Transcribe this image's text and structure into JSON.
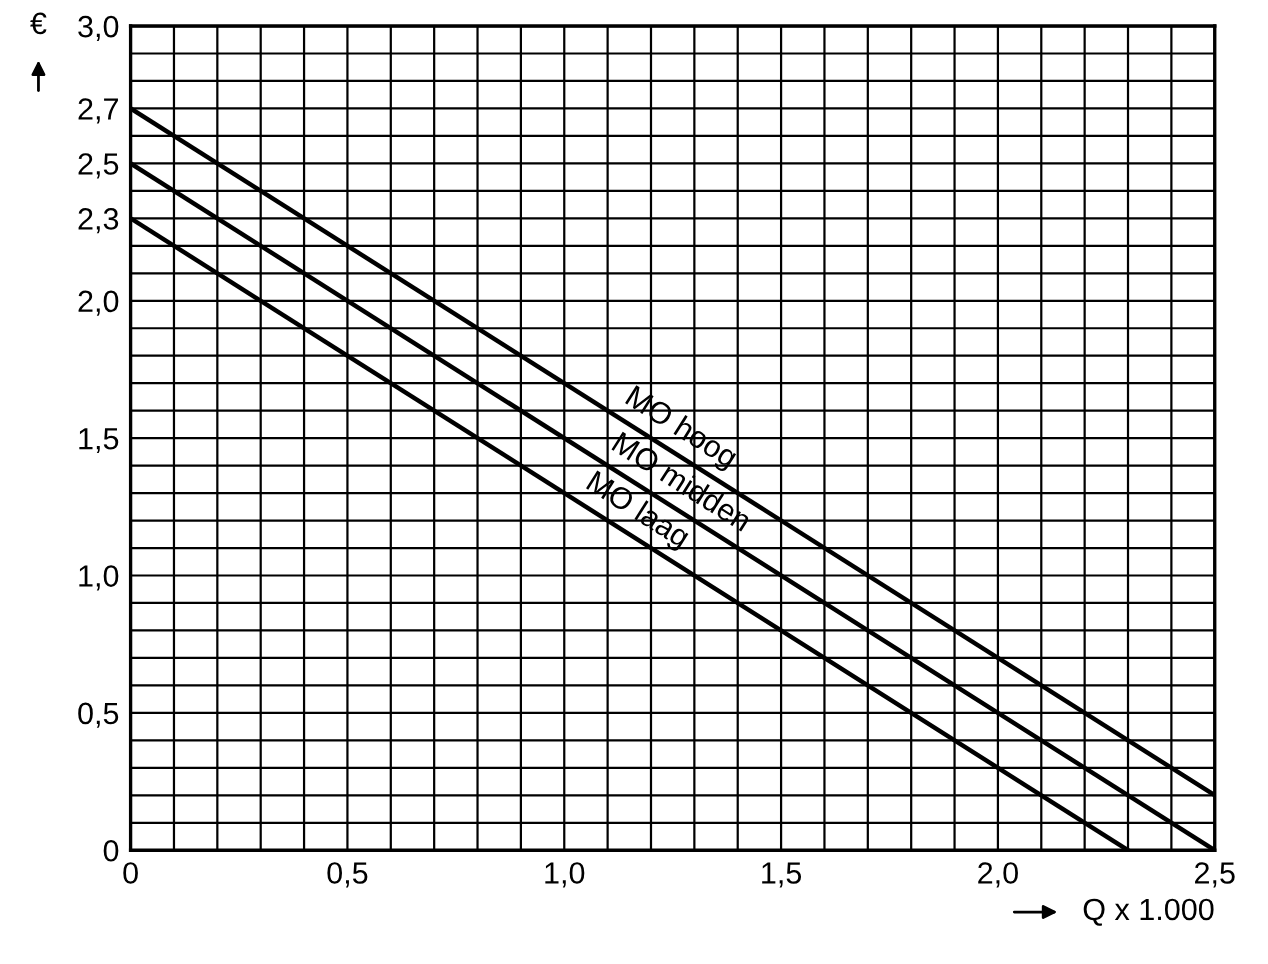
{
  "chart_data": {
    "type": "line",
    "xlabel": "Q x 1.000",
    "ylabel": "€",
    "series": [
      {
        "name": "MO hoog",
        "color": "#000000",
        "x": [
          0,
          2.5
        ],
        "values": [
          2.7,
          0.2
        ]
      },
      {
        "name": "MO midden",
        "color": "#000000",
        "x": [
          0,
          2.5
        ],
        "values": [
          2.5,
          0
        ]
      },
      {
        "name": "MO laag",
        "color": "#000000",
        "x": [
          0,
          2.3
        ],
        "values": [
          2.3,
          0
        ]
      }
    ],
    "xlim": [
      0,
      2.5
    ],
    "ylim": [
      0,
      3.0
    ],
    "xticks": [
      0,
      {
        "value": 0.1,
        "label": null
      },
      {
        "value": 0.2,
        "label": null
      },
      {
        "value": 0.3,
        "label": null
      },
      {
        "value": 0.4,
        "label": null
      },
      {
        "value": 0.5,
        "label": "0,5"
      },
      {
        "value": 0.6,
        "label": null
      },
      {
        "value": 0.7,
        "label": null
      },
      {
        "value": 0.8,
        "label": null
      },
      {
        "value": 0.9,
        "label": null
      },
      {
        "value": 1.0,
        "label": "1,0"
      },
      {
        "value": 1.1,
        "label": null
      },
      {
        "value": 1.2,
        "label": null
      },
      {
        "value": 1.3,
        "label": null
      },
      {
        "value": 1.4,
        "label": null
      },
      {
        "value": 1.5,
        "label": "1,5"
      },
      {
        "value": 1.6,
        "label": null
      },
      {
        "value": 1.7,
        "label": null
      },
      {
        "value": 1.8,
        "label": null
      },
      {
        "value": 1.9,
        "label": null
      },
      {
        "value": 2.0,
        "label": "2,0"
      },
      {
        "value": 2.1,
        "label": null
      },
      {
        "value": 2.2,
        "label": null
      },
      {
        "value": 2.3,
        "label": null
      },
      {
        "value": 2.4,
        "label": null
      },
      {
        "value": 2.5,
        "label": "2,5"
      }
    ],
    "yticks": [
      0,
      {
        "value": 0.1,
        "label": null
      },
      {
        "value": 0.2,
        "label": null
      },
      {
        "value": 0.3,
        "label": null
      },
      {
        "value": 0.4,
        "label": null
      },
      {
        "value": 0.5,
        "label": "0,5"
      },
      {
        "value": 0.6,
        "label": null
      },
      {
        "value": 0.7,
        "label": null
      },
      {
        "value": 0.8,
        "label": null
      },
      {
        "value": 0.9,
        "label": null
      },
      {
        "value": 1.0,
        "label": "1,0"
      },
      {
        "value": 1.1,
        "label": null
      },
      {
        "value": 1.2,
        "label": null
      },
      {
        "value": 1.3,
        "label": null
      },
      {
        "value": 1.4,
        "label": null
      },
      {
        "value": 1.5,
        "label": "1,5"
      },
      {
        "value": 1.6,
        "label": null
      },
      {
        "value": 1.7,
        "label": null
      },
      {
        "value": 1.8,
        "label": null
      },
      {
        "value": 1.9,
        "label": null
      },
      {
        "value": 2.0,
        "label": "2,0"
      },
      {
        "value": 2.1,
        "label": null
      },
      {
        "value": 2.2,
        "label": null
      },
      {
        "value": 2.3,
        "label": "2,3"
      },
      {
        "value": 2.4,
        "label": null
      },
      {
        "value": 2.5,
        "label": "2,5"
      },
      {
        "value": 2.6,
        "label": null
      },
      {
        "value": 2.7,
        "label": "2,7"
      },
      {
        "value": 2.8,
        "label": null
      },
      {
        "value": 2.9,
        "label": null
      },
      {
        "value": 3.0,
        "label": "3,0"
      }
    ],
    "grid": true,
    "legend": false,
    "marker": "none",
    "line_style": "solid"
  }
}
